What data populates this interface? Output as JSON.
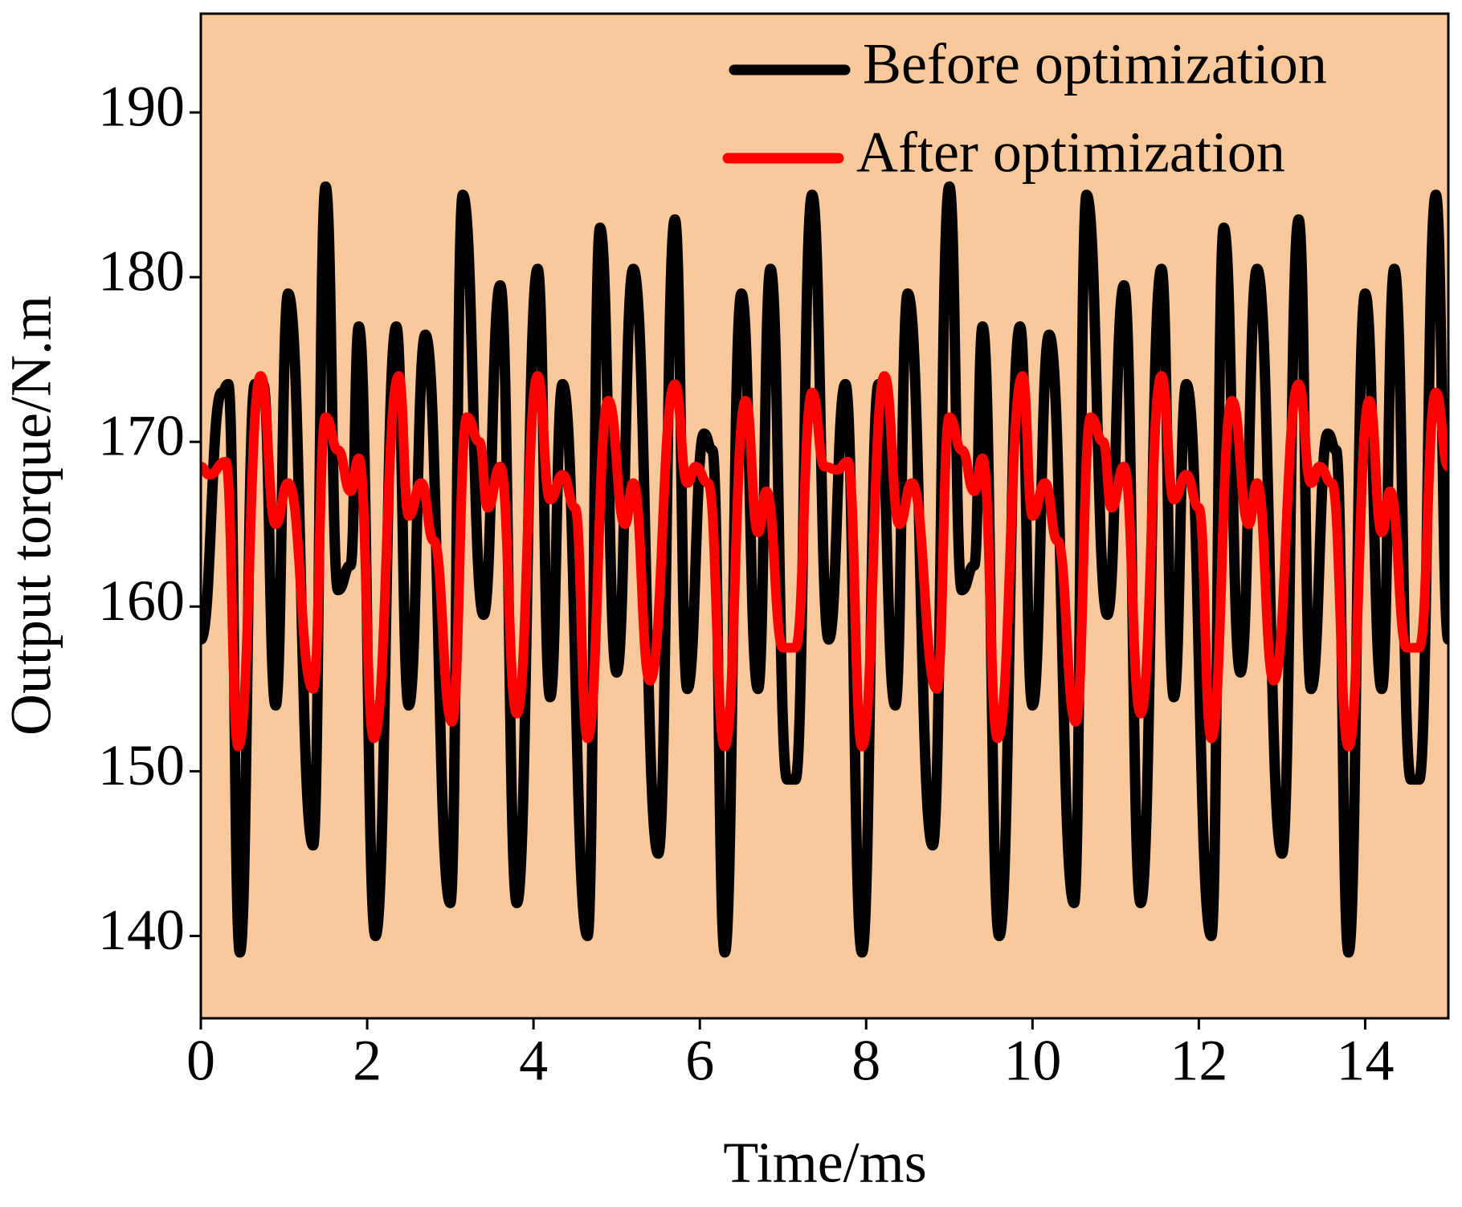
{
  "chart_data": {
    "type": "line",
    "xlabel": "Time/ms",
    "ylabel": "Output torque/N.m",
    "xlim": [
      0,
      15
    ],
    "ylim": [
      135,
      196
    ],
    "xticks": [
      0,
      2,
      4,
      6,
      8,
      10,
      12,
      14
    ],
    "yticks": [
      140,
      150,
      160,
      170,
      180,
      190
    ],
    "legend": "upper right",
    "background": "#f9c89b",
    "series": [
      {
        "name": "Before optimization",
        "color": "#000000",
        "x": [
          0,
          0.25,
          0.33,
          0.47,
          0.65,
          0.75,
          0.9,
          1.05,
          1.35,
          1.5,
          1.65,
          1.8,
          1.9,
          2.1,
          2.35,
          2.5,
          2.7,
          3.0,
          3.15,
          3.4,
          3.6,
          3.8,
          4.05,
          4.2,
          4.35,
          4.65,
          4.8,
          5.0,
          5.2,
          5.5,
          5.7,
          5.85,
          6.05,
          6.15,
          6.3,
          6.5,
          6.7,
          6.85,
          7.05,
          7.15,
          7.35,
          7.55,
          7.75,
          7.95,
          8.15,
          8.35,
          8.5,
          8.8,
          9.0,
          9.15,
          9.3,
          9.4,
          9.6,
          9.85,
          10.0,
          10.2,
          10.5,
          10.65,
          10.9,
          11.1,
          11.3,
          11.55,
          11.7,
          11.85,
          12.15,
          12.3,
          12.5,
          12.7,
          13.0,
          13.2,
          13.35,
          13.55,
          13.65,
          13.8,
          14.0,
          14.2,
          14.35,
          14.55,
          14.65,
          14.85,
          15.0
        ],
        "values": [
          158,
          173,
          173.5,
          139,
          173.5,
          173.5,
          154,
          179,
          145.5,
          185.5,
          161,
          162.5,
          177,
          140,
          177,
          154,
          176.5,
          142,
          185,
          159.5,
          179.5,
          142,
          180.5,
          154.5,
          173.5,
          140,
          183,
          156,
          180.5,
          145,
          183.5,
          155,
          170.5,
          169.5,
          139,
          179,
          155,
          180.5,
          149.5,
          149.5,
          185,
          158,
          173.5,
          139,
          173.5,
          154,
          179,
          145.5,
          185.5,
          161,
          162.5,
          177,
          140,
          177,
          154,
          176.5,
          142,
          185,
          159.5,
          179.5,
          142,
          180.5,
          154.5,
          173.5,
          140,
          183,
          156,
          180.5,
          145,
          183.5,
          155,
          170.5,
          169.5,
          139,
          179,
          155,
          180.5,
          149.5,
          149.5,
          185,
          158
        ]
      },
      {
        "name": "After optimization",
        "color": "#ff0000",
        "x": [
          0,
          0.1,
          0.3,
          0.45,
          0.72,
          0.9,
          1.05,
          1.35,
          1.5,
          1.65,
          1.8,
          1.9,
          2.08,
          2.38,
          2.5,
          2.65,
          2.8,
          3.02,
          3.2,
          3.35,
          3.45,
          3.6,
          3.8,
          4.05,
          4.2,
          4.35,
          4.5,
          4.65,
          4.9,
          5.1,
          5.2,
          5.4,
          5.7,
          5.85,
          5.95,
          6.1,
          6.3,
          6.55,
          6.7,
          6.8,
          7.0,
          7.15,
          7.35,
          7.5,
          7.65,
          7.78,
          7.95,
          8.22,
          8.4,
          8.55,
          8.85,
          9.0,
          9.15,
          9.3,
          9.4,
          9.58,
          9.88,
          10.0,
          10.15,
          10.3,
          10.52,
          10.7,
          10.85,
          10.95,
          11.1,
          11.3,
          11.55,
          11.7,
          11.85,
          12.0,
          12.15,
          12.4,
          12.6,
          12.7,
          12.9,
          13.2,
          13.35,
          13.45,
          13.6,
          13.8,
          14.05,
          14.2,
          14.3,
          14.5,
          14.65,
          14.85,
          15.0
        ],
        "values": [
          168.5,
          168,
          168.8,
          151.5,
          174,
          165,
          167.5,
          155,
          171.5,
          169.5,
          167,
          169,
          152,
          174,
          165.5,
          167.5,
          164,
          153,
          171.5,
          170,
          166,
          168.5,
          153.5,
          174,
          166.5,
          168,
          166,
          152,
          172.5,
          165,
          167.5,
          155.5,
          173.5,
          167.5,
          168.5,
          167.5,
          151.5,
          172.5,
          164.5,
          167,
          157.5,
          157.5,
          173,
          168.5,
          168.3,
          168.8,
          151.5,
          174,
          165,
          167.5,
          155,
          171.5,
          169.5,
          167,
          169,
          152,
          174,
          165.5,
          167.5,
          164,
          153,
          171.5,
          170,
          166,
          168.5,
          153.5,
          174,
          166.5,
          168,
          166,
          152,
          172.5,
          165,
          167.5,
          155.5,
          173.5,
          167.5,
          168.5,
          167.5,
          151.5,
          172.5,
          164.5,
          167,
          157.5,
          157.5,
          173,
          168.5
        ]
      }
    ]
  }
}
